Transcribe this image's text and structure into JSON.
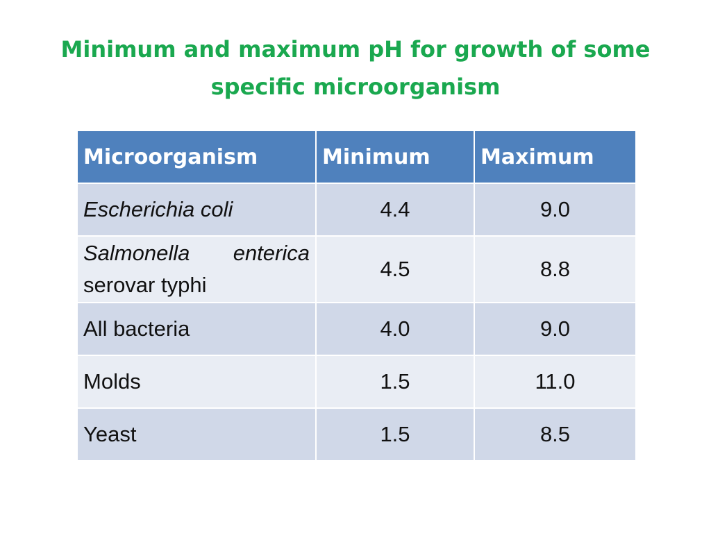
{
  "title": {
    "line1": "Minimum and maximum pH for growth of some",
    "line2": "specific microorganism"
  },
  "table": {
    "headers": [
      "Microorganism",
      "Minimum",
      "Maximum"
    ],
    "rows": [
      {
        "name": "Escherichia coli",
        "min": "4.4",
        "max": "9.0"
      },
      {
        "name_line1_a": "Salmonella",
        "name_line1_b": "enterica",
        "name_line2": "serovar typhi",
        "min": "4.5",
        "max": "8.8"
      },
      {
        "name": "All bacteria",
        "min": "4.0",
        "max": "9.0"
      },
      {
        "name": "Molds",
        "min": "1.5",
        "max": "11.0"
      },
      {
        "name": "Yeast",
        "min": "1.5",
        "max": "8.5"
      }
    ]
  },
  "colors": {
    "title": "#1aa84f",
    "header_bg": "#4f81bd",
    "row_odd_bg": "#d0d8e8",
    "row_even_bg": "#e9edf4"
  }
}
